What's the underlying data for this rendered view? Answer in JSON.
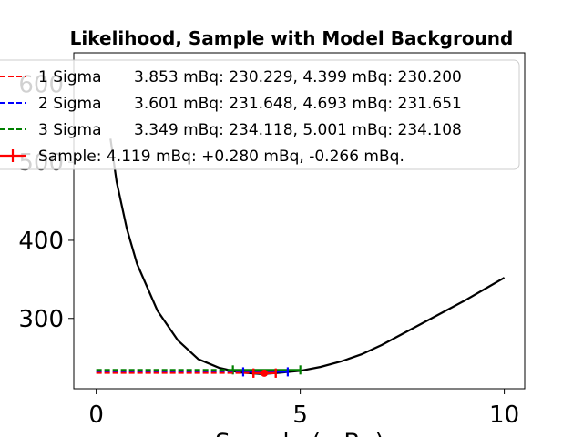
{
  "chart_data": {
    "type": "line",
    "title": "Likelihood, Sample with Model Background",
    "xlabel": "Sample (mBq)",
    "ylabel": "",
    "xlim": [
      -0.55,
      10.5
    ],
    "ylim": [
      210,
      640
    ],
    "xticks": [
      0,
      5,
      10
    ],
    "xtick_labels": [
      "0",
      "5",
      "10"
    ],
    "yticks": [
      300,
      400,
      500,
      600
    ],
    "ytick_labels": [
      "300",
      "400",
      "500",
      "600"
    ],
    "grid": false,
    "legend_position": "top-right",
    "likelihood_curve": {
      "color": "#000000",
      "x": [
        0.35,
        0.5,
        0.75,
        1.0,
        1.5,
        2.0,
        2.5,
        3.0,
        3.5,
        4.0,
        4.119,
        4.5,
        5.0,
        5.5,
        6.0,
        6.5,
        7.0,
        7.5,
        8.0,
        8.5,
        9.0,
        9.5,
        10.0
      ],
      "y": [
        530,
        475,
        415,
        370,
        310,
        272,
        248,
        237,
        231,
        229,
        229,
        230.5,
        233,
        238,
        245,
        254,
        266,
        280,
        294,
        308,
        322,
        337,
        352
      ]
    },
    "series": [
      {
        "name": "1 Sigma",
        "color": "#ff0000",
        "values_text": "3.853 mBq: 230.229, 4.399 mBq: 230.200",
        "lower": 3.853,
        "upper": 4.399,
        "level": 230.2
      },
      {
        "name": "2 Sigma",
        "color": "#0000ff",
        "values_text": "3.601 mBq: 231.648, 4.693 mBq: 231.651",
        "lower": 3.601,
        "upper": 4.693,
        "level": 231.65
      },
      {
        "name": "3 Sigma",
        "color": "#008000",
        "values_text": "3.349 mBq: 234.118, 5.001 mBq: 234.108",
        "lower": 3.349,
        "upper": 5.001,
        "level": 234.11
      }
    ],
    "sample": {
      "label": "Sample: 4.119 mBq: +0.280 mBq, -0.266 mBq.",
      "value": 4.119,
      "plus": 0.28,
      "minus": 0.266,
      "level": 229.9,
      "color": "#ff0000"
    }
  }
}
